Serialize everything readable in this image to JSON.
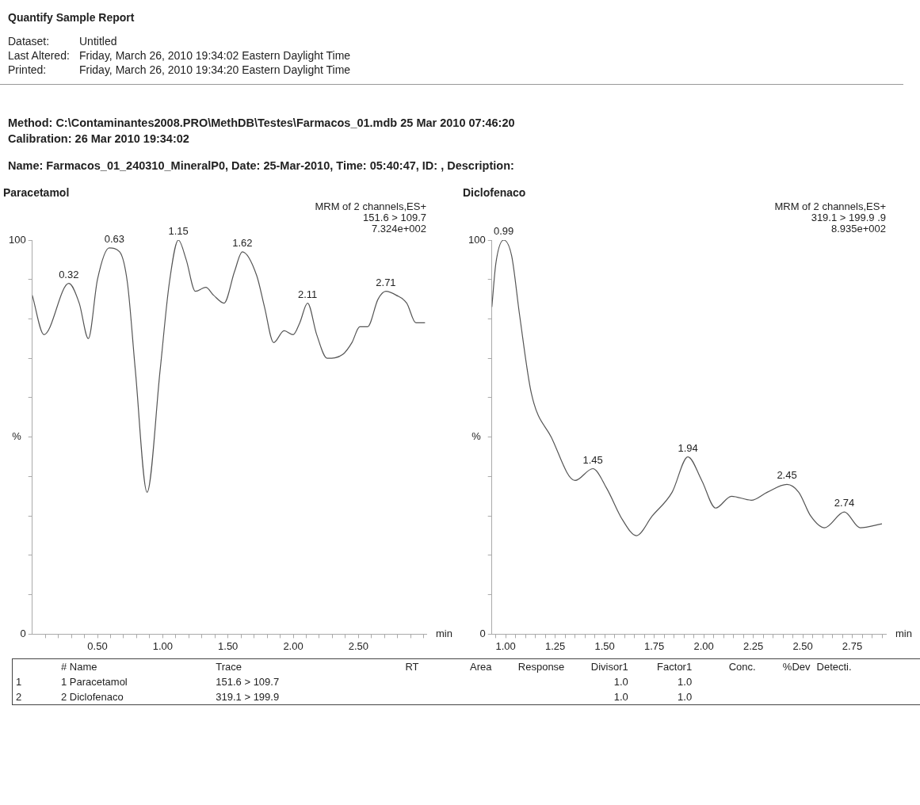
{
  "chart_data": [
    {
      "type": "other",
      "title": "Quantify Sample Report",
      "annotations": [
        "Dataset:\tUntitled",
        "Last Altered:\tFriday, March 26, 2010 19:34:02 Eastern Daylight Time",
        "Printed:\tFriday, March 26, 2010 19:34:20 Eastern Daylight Time",
        "Method: C:\\Contaminantes2008.PRO\\MethDB\\Testes\\Farmacos_01.mdb 25 Mar 2010 07:46:20",
        "Calibration: 26 Mar 2010 19:34:02",
        "Name: Farmacos_01_240310_MineralP0, Date: 25-Mar-2010, Time: 05:40:47, ID: , Description:"
      ]
    },
    {
      "type": "line",
      "title": "Paracetamol",
      "xlabel": "min",
      "ylabel": "%",
      "x": [
        0.0,
        0.09,
        0.28,
        0.36,
        0.43,
        0.5,
        0.59,
        0.67,
        0.73,
        0.79,
        0.88,
        0.98,
        1.05,
        1.12,
        1.18,
        1.25,
        1.33,
        1.39,
        1.47,
        1.55,
        1.61,
        1.72,
        1.78,
        1.85,
        1.93,
        2.0,
        2.05,
        2.11,
        2.18,
        2.26,
        2.38,
        2.45,
        2.51,
        2.57,
        2.65,
        2.71,
        2.79,
        2.87,
        2.94,
        3.01
      ],
      "series": [
        {
          "color": "#555555",
          "values": [
            86,
            76,
            89,
            84,
            75,
            90,
            98,
            97,
            89,
            67,
            36,
            67,
            89,
            100,
            95,
            87,
            88,
            86,
            84,
            92,
            97,
            91,
            83,
            74,
            77,
            76,
            79,
            84,
            76,
            70,
            71,
            74,
            78,
            78,
            85,
            87,
            86,
            84,
            79,
            79
          ]
        }
      ],
      "xlim": [
        0,
        3.02
      ],
      "xticks": [
        {
          "value": 0.1,
          "label": null
        },
        {
          "value": 0.2,
          "label": null
        },
        {
          "value": 0.3,
          "label": null
        },
        {
          "value": 0.4,
          "label": null
        },
        {
          "value": 0.5,
          "label": "0.50"
        },
        {
          "value": 0.6,
          "label": null
        },
        {
          "value": 0.7,
          "label": null
        },
        {
          "value": 0.8,
          "label": null
        },
        {
          "value": 0.9,
          "label": null
        },
        {
          "value": 1.0,
          "label": "1.00"
        },
        {
          "value": 1.1,
          "label": null
        },
        {
          "value": 1.2,
          "label": null
        },
        {
          "value": 1.3,
          "label": null
        },
        {
          "value": 1.4,
          "label": null
        },
        {
          "value": 1.5,
          "label": "1.50"
        },
        {
          "value": 1.6,
          "label": null
        },
        {
          "value": 1.7,
          "label": null
        },
        {
          "value": 1.8,
          "label": null
        },
        {
          "value": 1.9,
          "label": null
        },
        {
          "value": 2.0,
          "label": "2.00"
        },
        {
          "value": 2.1,
          "label": null
        },
        {
          "value": 2.2,
          "label": null
        },
        {
          "value": 2.3,
          "label": null
        },
        {
          "value": 2.4,
          "label": null
        },
        {
          "value": 2.5,
          "label": "2.50"
        },
        {
          "value": 2.6,
          "label": null
        },
        {
          "value": 2.7,
          "label": null
        },
        {
          "value": 2.8,
          "label": null
        },
        {
          "value": 2.9,
          "label": null
        },
        {
          "value": 3.0,
          "label": null
        }
      ],
      "ylim": [
        0,
        100
      ],
      "yticks": [
        {
          "value": 0,
          "label": "0"
        },
        {
          "value": 10,
          "label": null
        },
        {
          "value": 20,
          "label": null
        },
        {
          "value": 30,
          "label": null
        },
        {
          "value": 40,
          "label": null
        },
        {
          "value": 50,
          "label": null
        },
        {
          "value": 60,
          "label": null
        },
        {
          "value": 70,
          "label": null
        },
        {
          "value": 80,
          "label": null
        },
        {
          "value": 90,
          "label": null
        },
        {
          "value": 100,
          "label": "100"
        }
      ],
      "annotations": [
        "MRM of 2 channels,ES+",
        "151.6 > 109.7",
        "7.324e+002",
        {
          "text": "0.32",
          "x": 0.28,
          "y": 89
        },
        {
          "text": "0.63",
          "x": 0.63,
          "y": 98
        },
        {
          "text": "1.15",
          "x": 1.12,
          "y": 100
        },
        {
          "text": "1.62",
          "x": 1.61,
          "y": 97
        },
        {
          "text": "2.11",
          "x": 2.11,
          "y": 84
        },
        {
          "text": "2.71",
          "x": 2.71,
          "y": 87
        }
      ]
    },
    {
      "type": "line",
      "title": "Diclofenaco",
      "xlabel": "min",
      "ylabel": "%",
      "x": [
        0.93,
        0.95,
        0.99,
        1.03,
        1.07,
        1.13,
        1.23,
        1.35,
        1.44,
        1.51,
        1.59,
        1.66,
        1.74,
        1.84,
        1.92,
        1.99,
        2.06,
        2.14,
        2.24,
        2.32,
        2.42,
        2.48,
        2.54,
        2.61,
        2.71,
        2.79,
        2.9
      ],
      "series": [
        {
          "color": "#555555",
          "values": [
            83,
            94,
            100,
            96,
            81,
            61,
            50,
            39,
            42,
            37,
            29,
            25,
            30,
            36,
            45,
            39,
            32,
            35,
            34,
            36,
            38,
            36,
            30,
            27,
            31,
            27,
            28
          ]
        }
      ],
      "xlim": [
        0.93,
        2.92
      ],
      "xticks": [
        {
          "value": 0.95,
          "label": null
        },
        {
          "value": 1.0,
          "label": "1.00"
        },
        {
          "value": 1.05,
          "label": null
        },
        {
          "value": 1.1,
          "label": null
        },
        {
          "value": 1.15,
          "label": null
        },
        {
          "value": 1.2,
          "label": null
        },
        {
          "value": 1.25,
          "label": "1.25"
        },
        {
          "value": 1.3,
          "label": null
        },
        {
          "value": 1.35,
          "label": null
        },
        {
          "value": 1.4,
          "label": null
        },
        {
          "value": 1.45,
          "label": null
        },
        {
          "value": 1.5,
          "label": "1.50"
        },
        {
          "value": 1.55,
          "label": null
        },
        {
          "value": 1.6,
          "label": null
        },
        {
          "value": 1.65,
          "label": null
        },
        {
          "value": 1.7,
          "label": null
        },
        {
          "value": 1.75,
          "label": "1.75"
        },
        {
          "value": 1.8,
          "label": null
        },
        {
          "value": 1.85,
          "label": null
        },
        {
          "value": 1.9,
          "label": null
        },
        {
          "value": 1.95,
          "label": null
        },
        {
          "value": 2.0,
          "label": "2.00"
        },
        {
          "value": 2.05,
          "label": null
        },
        {
          "value": 2.1,
          "label": null
        },
        {
          "value": 2.15,
          "label": null
        },
        {
          "value": 2.2,
          "label": null
        },
        {
          "value": 2.25,
          "label": "2.25"
        },
        {
          "value": 2.3,
          "label": null
        },
        {
          "value": 2.35,
          "label": null
        },
        {
          "value": 2.4,
          "label": null
        },
        {
          "value": 2.45,
          "label": null
        },
        {
          "value": 2.5,
          "label": "2.50"
        },
        {
          "value": 2.55,
          "label": null
        },
        {
          "value": 2.6,
          "label": null
        },
        {
          "value": 2.65,
          "label": null
        },
        {
          "value": 2.7,
          "label": null
        },
        {
          "value": 2.75,
          "label": "2.75"
        },
        {
          "value": 2.8,
          "label": null
        },
        {
          "value": 2.85,
          "label": null
        },
        {
          "value": 2.9,
          "label": null
        }
      ],
      "ylim": [
        0,
        100
      ],
      "yticks": [
        {
          "value": 0,
          "label": "0"
        },
        {
          "value": 10,
          "label": null
        },
        {
          "value": 20,
          "label": null
        },
        {
          "value": 30,
          "label": null
        },
        {
          "value": 40,
          "label": null
        },
        {
          "value": 50,
          "label": null
        },
        {
          "value": 60,
          "label": null
        },
        {
          "value": 70,
          "label": null
        },
        {
          "value": 80,
          "label": null
        },
        {
          "value": 90,
          "label": null
        },
        {
          "value": 100,
          "label": "100"
        }
      ],
      "annotations": [
        "MRM of 2 channels,ES+",
        "319.1 > 199.9 .9",
        "8.935e+002",
        {
          "text": "0.99",
          "x": 0.99,
          "y": 100
        },
        {
          "text": "1.45",
          "x": 1.44,
          "y": 42
        },
        {
          "text": "1.94",
          "x": 1.92,
          "y": 45
        },
        {
          "text": "2.45",
          "x": 2.42,
          "y": 38
        },
        {
          "text": "2.74",
          "x": 2.71,
          "y": 31
        }
      ]
    },
    {
      "type": "other",
      "annotations": [
        "\t# Name\tTrace\tRT\tArea\tResponse\tDivisor1\tFactor1\tConc.\t%Dev\tDetecti.",
        "1\t1 Paracetamol\t151.6 > 109.7\t\t\t\t1.0\t1.0\t\t\t",
        "2\t2 Diclofenaco\t319.1 > 199.9\t\t\t\t1.0\t1.0\t\t\t"
      ]
    }
  ]
}
